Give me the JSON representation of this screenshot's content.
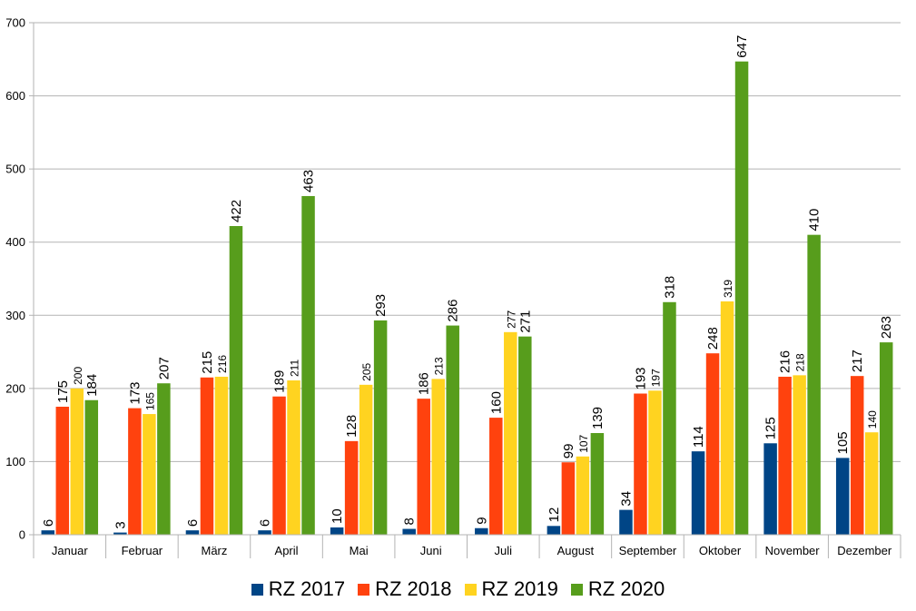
{
  "chart_data": {
    "type": "bar",
    "title": "",
    "xlabel": "",
    "ylabel": "",
    "ylim": [
      0,
      700
    ],
    "yticks": [
      0,
      100,
      200,
      300,
      400,
      500,
      600,
      700
    ],
    "grid": true,
    "legend_position": "bottom",
    "categories": [
      "Januar",
      "Februar",
      "März",
      "April",
      "Mai",
      "Juni",
      "Juli",
      "August",
      "September",
      "Oktober",
      "November",
      "Dezember"
    ],
    "series": [
      {
        "name": "RZ 2017",
        "color": "#004586",
        "values": [
          6,
          3,
          6,
          6,
          10,
          8,
          9,
          12,
          34,
          114,
          125,
          105
        ]
      },
      {
        "name": "RZ 2018",
        "color": "#ff420e",
        "values": [
          175,
          173,
          215,
          189,
          128,
          186,
          160,
          99,
          193,
          248,
          216,
          217
        ]
      },
      {
        "name": "RZ 2019",
        "color": "#ffd320",
        "values": [
          200,
          165,
          216,
          211,
          205,
          213,
          277,
          107,
          197,
          319,
          218,
          140
        ]
      },
      {
        "name": "RZ 2020",
        "color": "#579d1c",
        "values": [
          184,
          207,
          422,
          463,
          293,
          286,
          271,
          139,
          318,
          647,
          410,
          263
        ]
      }
    ]
  }
}
